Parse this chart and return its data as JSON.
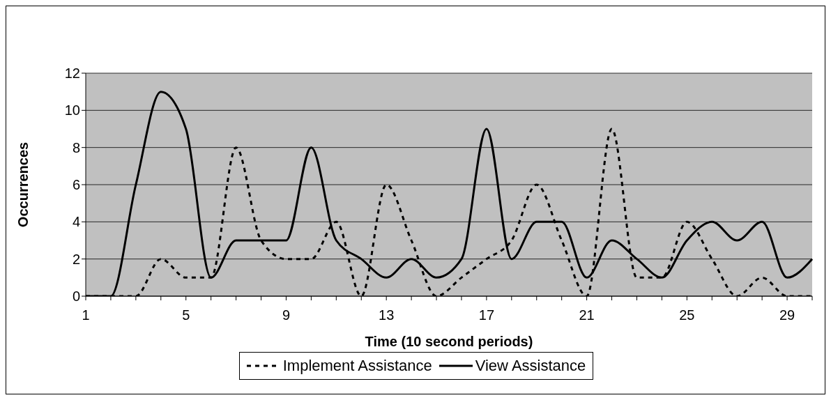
{
  "chart_data": {
    "type": "line",
    "xlabel": "Time (10 second periods)",
    "ylabel": "Occurrences",
    "categories": [
      "1",
      null,
      null,
      null,
      "5",
      null,
      null,
      null,
      "9",
      null,
      null,
      null,
      "13",
      null,
      null,
      null,
      "17",
      null,
      null,
      null,
      "21",
      null,
      null,
      null,
      "25",
      null,
      null,
      null,
      "29",
      null
    ],
    "series": [
      {
        "name": "View Assistance",
        "color": "#000000",
        "line_style": "solid",
        "values": [
          0,
          0,
          6,
          11,
          9,
          1,
          3,
          3,
          3,
          8,
          3,
          2,
          1,
          2,
          1,
          2,
          9,
          2,
          4,
          4,
          1,
          3,
          2,
          1,
          3,
          4,
          3,
          4,
          1,
          2
        ]
      },
      {
        "name": "Implement Assistance",
        "color": "#000000",
        "line_style": "dashed",
        "values": [
          0,
          0,
          0,
          2,
          1,
          1,
          8,
          3,
          2,
          2,
          4,
          0,
          6,
          3,
          0,
          1,
          2,
          3,
          6,
          3,
          0,
          9,
          1,
          1,
          4,
          2,
          0,
          1,
          0,
          0
        ]
      }
    ],
    "ylim": [
      0,
      12
    ],
    "yticks": [
      0,
      2,
      4,
      6,
      8,
      10,
      12
    ],
    "grid": "y",
    "legend": "bottom",
    "marker": "none"
  }
}
